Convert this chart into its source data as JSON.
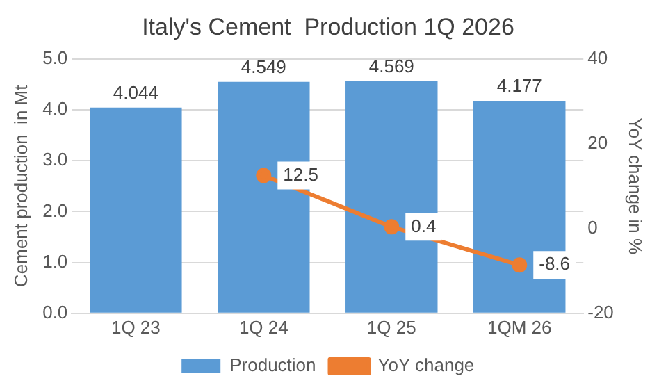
{
  "chart_data": {
    "type": "bar",
    "title": "Italy's Cement  Production 1Q 2026",
    "ylabel": "Cement production  in Mt",
    "y2label": "YoY change in %",
    "categories": [
      "1Q 23",
      "1Q 24",
      "1Q 25",
      "1QM 26"
    ],
    "series": [
      {
        "name": "Production",
        "color": "#5b9bd5",
        "values": [
          4.044,
          4.549,
          4.569,
          4.177
        ]
      },
      {
        "name": "YoY change",
        "type": "line",
        "axis": "y2",
        "color": "#ed7d31",
        "marker": "circle",
        "values": [
          null,
          12.5,
          0.4,
          -8.6
        ]
      }
    ],
    "ylim": [
      0,
      5
    ],
    "yticks": [
      {
        "value": 0,
        "label": "0.0"
      },
      {
        "value": 1,
        "label": "1.0"
      },
      {
        "value": 2,
        "label": "2.0"
      },
      {
        "value": 3,
        "label": "3.0"
      },
      {
        "value": 4,
        "label": "4.0"
      },
      {
        "value": 5,
        "label": "5.0"
      }
    ],
    "y2lim": [
      -20,
      40
    ],
    "y2ticks": [
      -20,
      0,
      20,
      40
    ],
    "grid": "y",
    "legend": "bottom",
    "data_labels": true
  }
}
